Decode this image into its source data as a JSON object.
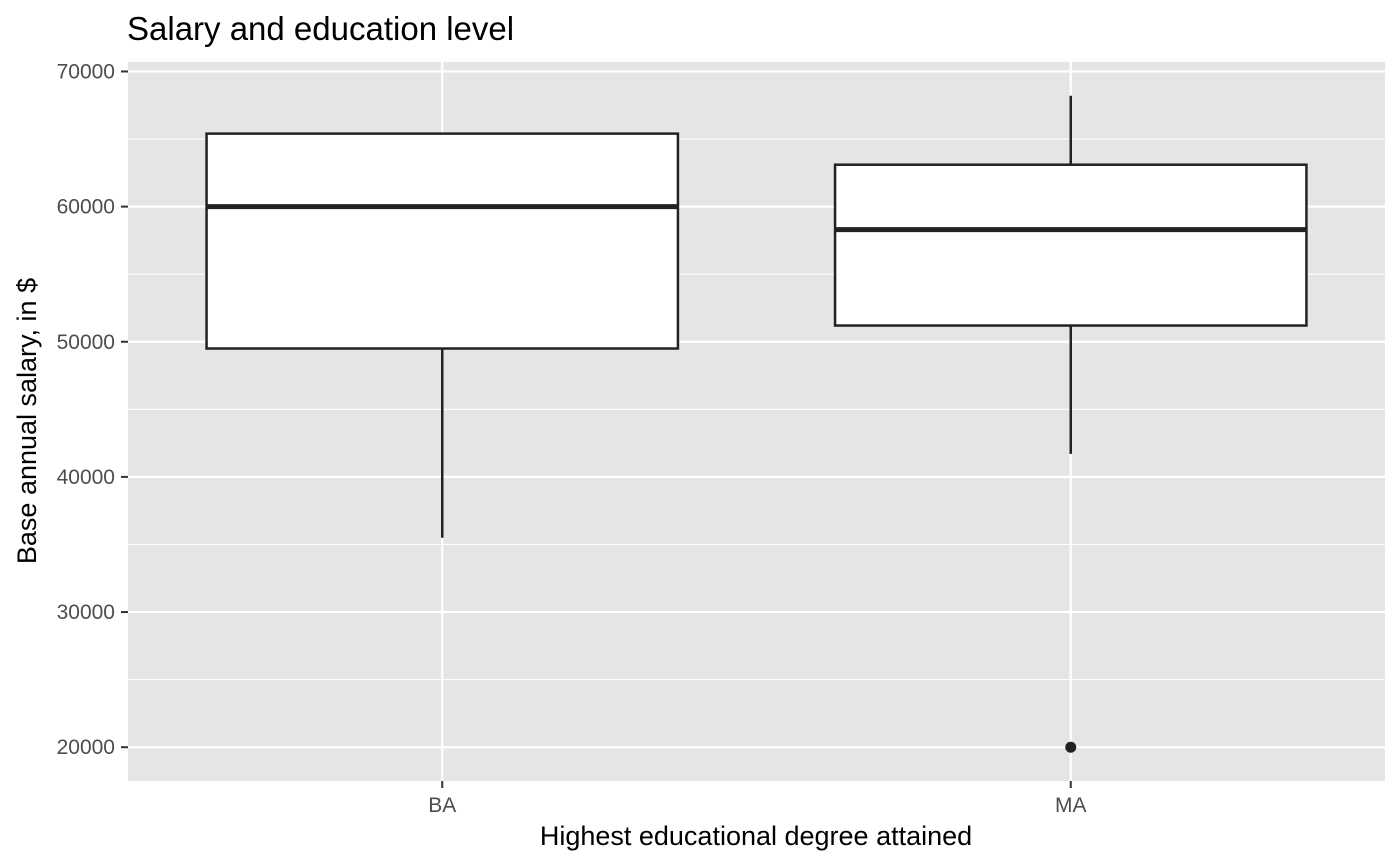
{
  "chart_data": {
    "type": "boxplot",
    "title": "Salary and education level",
    "xlabel": "Highest educational degree attained",
    "ylabel": "Base annual salary, in $",
    "categories": [
      "BA",
      "MA"
    ],
    "boxes": [
      {
        "category": "BA",
        "whisker_low": 35500,
        "q1": 49500,
        "median": 60000,
        "q3": 65400,
        "whisker_high": 65400,
        "outliers": []
      },
      {
        "category": "MA",
        "whisker_low": 41700,
        "q1": 51200,
        "median": 58300,
        "q3": 63100,
        "whisker_high": 68200,
        "outliers": [
          20000
        ]
      }
    ],
    "ylim": [
      17500,
      70700
    ],
    "yticks": [
      20000,
      30000,
      40000,
      50000,
      60000,
      70000
    ],
    "ytick_labels": [
      "20000",
      "30000",
      "40000",
      "50000",
      "60000",
      "70000"
    ],
    "grid": true,
    "colors": {
      "panel_background": "#e5e5e5",
      "grid": "#ffffff",
      "box_fill": "#ffffff",
      "box_line": "#222222"
    }
  }
}
